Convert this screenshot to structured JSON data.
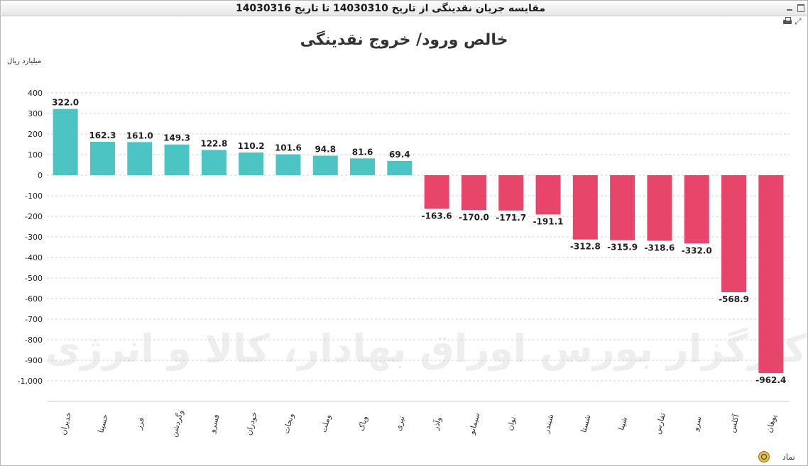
{
  "window": {
    "title": "مقایسه جریان نقدینگی از تاریخ 14030310 تا تاریخ 14030316"
  },
  "unit_label": "میلیارد ریال",
  "legend_label": "نماد",
  "watermark_text": "کارگزار بورس اوراق بهادار، کالا و انرژی",
  "colors": {
    "positive": "#4dc4c4",
    "negative": "#e8456b",
    "grid": "#d0d0d0"
  },
  "chart_data": {
    "type": "bar",
    "title": "خالص ورود/ خروج نقدینگی",
    "ylabel": "میلیارد ریال",
    "ylim": [
      -1000,
      400
    ],
    "yticks": [
      400,
      300,
      200,
      100,
      0,
      -100,
      -200,
      -300,
      -400,
      -500,
      -600,
      -700,
      -800,
      -900,
      -1000
    ],
    "ytick_labels": [
      "400",
      "300",
      "200",
      "100",
      "0",
      "-100",
      "-200",
      "-300",
      "-400",
      "-500",
      "-600",
      "-700",
      "-800",
      "-900",
      "-1,000"
    ],
    "categories": [
      "خدیران",
      "حسینا",
      "فرز",
      "وگردشن",
      "فسرو",
      "خودران",
      "ونجات",
      "وملت",
      "وپاک",
      "نیری",
      "وآذر",
      "سیمانو",
      "نوان",
      "شبندر",
      "شستا",
      "شپنا",
      "تفارس",
      "سرو",
      "آکلس",
      "پوهان"
    ],
    "values": [
      322.0,
      162.3,
      161.0,
      149.3,
      122.8,
      110.2,
      101.6,
      94.8,
      81.6,
      69.4,
      -163.6,
      -170.0,
      -171.7,
      -191.1,
      -312.8,
      -315.9,
      -318.6,
      -332.0,
      -568.9,
      -962.4
    ],
    "value_labels": [
      "322.0",
      "162.3",
      "161.0",
      "149.3",
      "122.8",
      "110.2",
      "101.6",
      "94.8",
      "81.6",
      "69.4",
      "-163.6",
      "-170.0",
      "-171.7",
      "-191.1",
      "-312.8",
      "-315.9",
      "-318.6",
      "-332.0",
      "-568.9",
      "-962.4"
    ],
    "grid": true
  }
}
